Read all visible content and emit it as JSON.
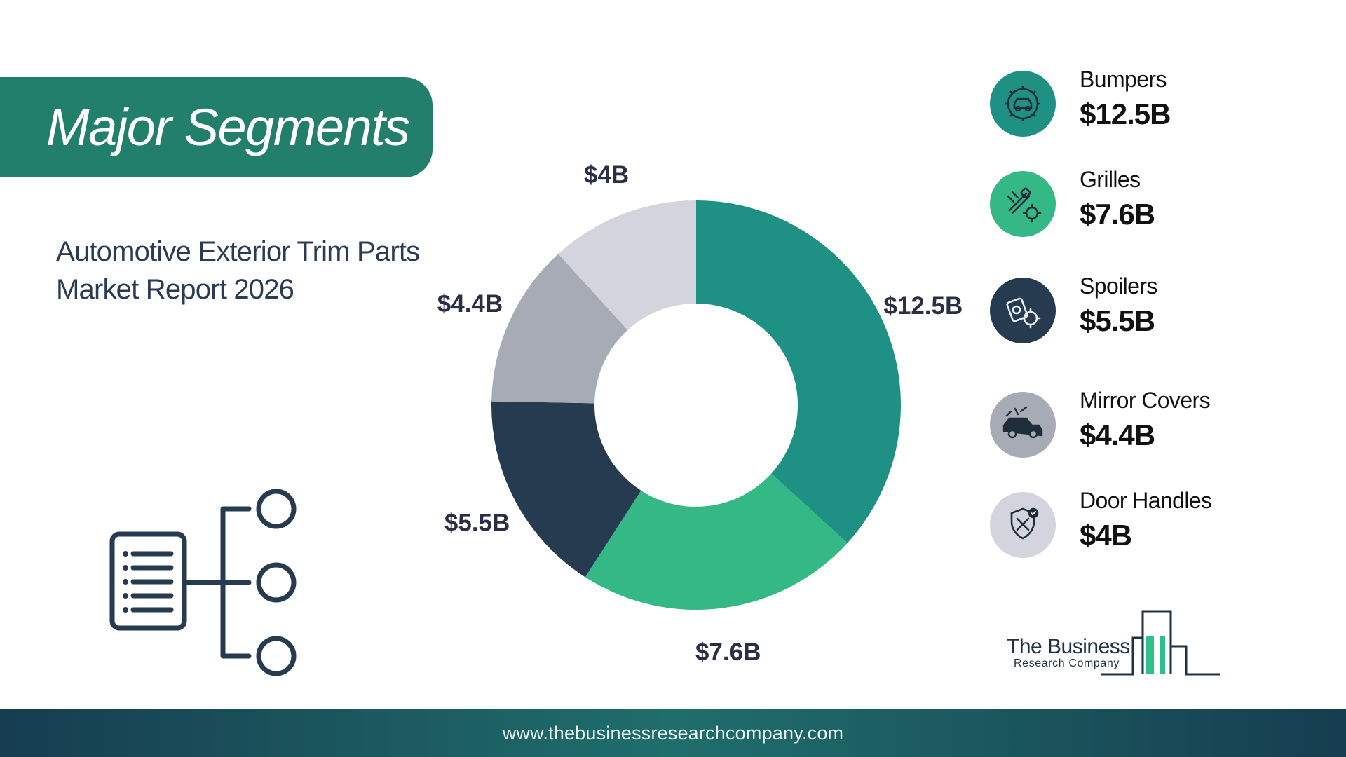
{
  "header": {
    "title": "Major Segments",
    "subtitle_line1": "Automotive Exterior Trim Parts",
    "subtitle_line2": "Market Report 2026"
  },
  "colors": {
    "banner": "#217f6c",
    "teal": "#1e9184",
    "green": "#33b886",
    "navy": "#263a50",
    "gray": "#a7abb6",
    "light_gray": "#d3d4dd",
    "label_text": "#2a2f45"
  },
  "chart_data": {
    "type": "pie",
    "variant": "donut",
    "categories": [
      "Bumpers",
      "Grilles",
      "Spoilers",
      "Mirror Covers",
      "Door Handles"
    ],
    "values": [
      12.5,
      7.6,
      5.5,
      4.4,
      4.0
    ],
    "unit": "$B",
    "data_labels": [
      "$12.5B",
      "$7.6B",
      "$5.5B",
      "$4.4B",
      "$4B"
    ],
    "colors": [
      "#1e9184",
      "#33b886",
      "#263a50",
      "#a7abb6",
      "#d3d4dd"
    ],
    "start": "12 o'clock",
    "direction": "clockwise"
  },
  "legend": [
    {
      "name": "Bumpers",
      "value": "$12.5B",
      "icon": "gear-car-icon",
      "color": "#1e9184"
    },
    {
      "name": "Grilles",
      "value": "$7.6B",
      "icon": "parts-gear-icon",
      "color": "#33b886"
    },
    {
      "name": "Spoilers",
      "value": "$5.5B",
      "icon": "oil-gear-icon",
      "color": "#263a50"
    },
    {
      "name": "Mirror Covers",
      "value": "$4.4B",
      "icon": "car-repair-icon",
      "color": "#a7abb6"
    },
    {
      "name": "Door Handles",
      "value": "$4B",
      "icon": "shield-tools-icon",
      "color": "#d3d4dd"
    }
  ],
  "brand": {
    "name": "The Business",
    "sub": "Research Company"
  },
  "footer": {
    "url": "www.thebusinessresearchcompany.com"
  }
}
